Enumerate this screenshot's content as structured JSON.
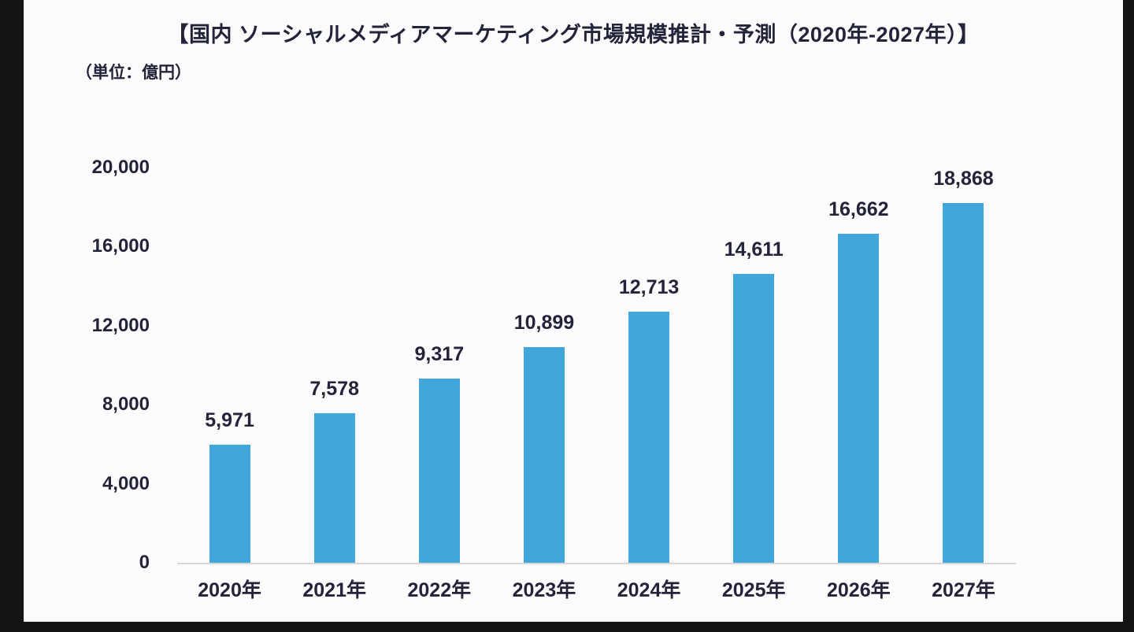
{
  "title": "【国内 ソーシャルメディアマーケティング市場規模推計・予測（2020年-2027年）】",
  "unit_label": "（単位：億円）",
  "colors": {
    "bar": "#41a7db",
    "text": "#23233a",
    "axis_line": "#d6d6d6",
    "background": "#fbfbfc",
    "page_edge": "#141416"
  },
  "chart_data": {
    "type": "bar",
    "title": "国内 ソーシャルメディアマーケティング市場規模推計・予測（2020年-2027年）",
    "xlabel": "",
    "ylabel": "億円",
    "categories": [
      "2020年",
      "2021年",
      "2022年",
      "2023年",
      "2024年",
      "2025年",
      "2026年",
      "2027年"
    ],
    "values": [
      5971,
      7578,
      9317,
      10899,
      12713,
      14611,
      16662,
      18868
    ],
    "value_labels": [
      "5,971",
      "7,578",
      "9,317",
      "10,899",
      "12,713",
      "14,611",
      "16,662",
      "18,868"
    ],
    "ylim": [
      0,
      20000
    ],
    "yticks": [
      0,
      4000,
      8000,
      12000,
      16000,
      20000
    ],
    "ytick_labels": [
      "0",
      "4,000",
      "8,000",
      "12,000",
      "16,000",
      "20,000"
    ],
    "grid": false,
    "legend": "none",
    "bar_color": "#41a7db"
  }
}
